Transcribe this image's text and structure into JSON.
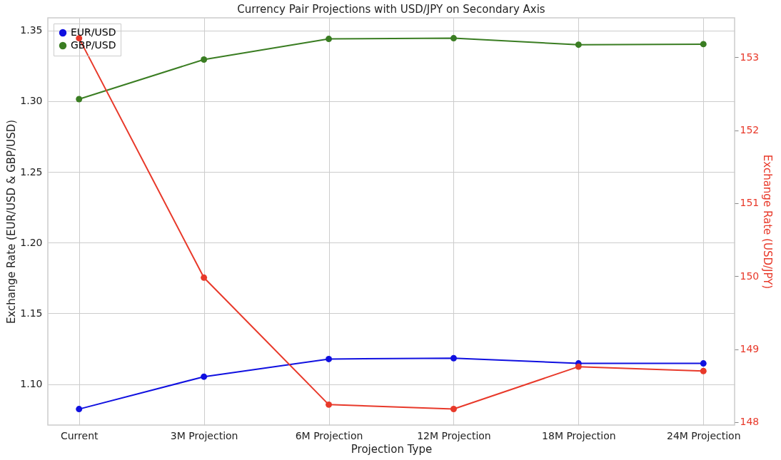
{
  "chart_data": {
    "type": "line",
    "title": "Currency Pair Projections with USD/JPY on Secondary Axis",
    "xlabel": "Projection Type",
    "ylabel": "Exchange Rate (EUR/USD & GBP/USD)",
    "y2label": "Exchange Rate (USD/JPY)",
    "categories": [
      "Current",
      "3M Projection",
      "6M Projection",
      "12M Projection",
      "18M Projection",
      "24M Projection"
    ],
    "series": [
      {
        "name": "EUR/USD",
        "color": "#1010e0",
        "values": [
          1.0823,
          1.1052,
          1.1177,
          1.1183,
          1.1146,
          1.1146
        ]
      },
      {
        "name": "GBP/USD",
        "color": "#3a7d22",
        "values": [
          1.3015,
          1.3295,
          1.3441,
          1.3446,
          1.34,
          1.3404
        ]
      },
      {
        "color": "#e8392a",
        "axis": "y2",
        "values": [
          153.26,
          149.98,
          148.24,
          148.18,
          148.76,
          148.7
        ]
      }
    ],
    "ylim": [
      1.071,
      1.359
    ],
    "yticks": [
      {
        "value": 1.1,
        "label": "1.10"
      },
      1.15,
      {
        "value": 1.2,
        "label": "1.20"
      },
      1.25,
      {
        "value": 1.3,
        "label": "1.30"
      },
      1.35
    ],
    "y2lim": [
      147.96,
      153.54
    ],
    "y2ticks": [
      148,
      149,
      150,
      151,
      152,
      153
    ],
    "grid": true,
    "legend": "top left",
    "marker": "circle",
    "line_style": "solid"
  }
}
